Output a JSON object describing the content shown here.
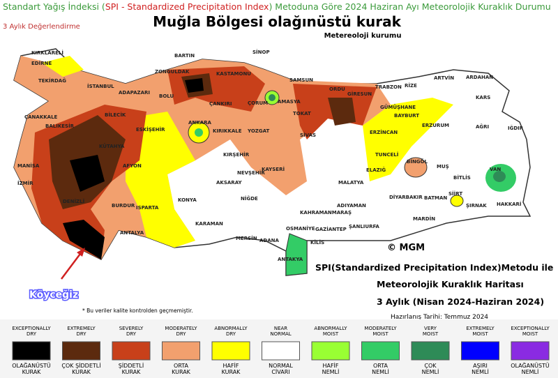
{
  "header": {
    "parts": [
      "Standart Yağış İndeksi (",
      "SPI - Standardized Precipitation Index",
      ") Metoduna Göre 2024 Haziran Ayı Meteorolojik Kuraklık Durumu"
    ],
    "subtitle": "3 Aylık Değerlendirme",
    "title": "Muğla Bölgesi olağınüstü kurak",
    "source": "Metereoloji kurumu"
  },
  "map": {
    "cities": [
      "KIRKLARELİ",
      "EDİRNE",
      "TEKİRDAĞ",
      "İSTANBUL",
      "ÇANAKKALE",
      "BALIKESİR",
      "BİLECİK",
      "ADAPAZARI",
      "BOLU",
      "ZONGULDAK",
      "BARTIN",
      "KASTAMONU",
      "SİNOP",
      "SAMSUN",
      "ORDU",
      "GİRESUN",
      "TRABZON",
      "RİZE",
      "ARTVİN",
      "ARDAHAN",
      "KARS",
      "AĞRI",
      "IĞDIR",
      "ERZURUM",
      "BAYBURT",
      "GÜMÜŞHANE",
      "ERZİNCAN",
      "TUNCELİ",
      "BİNGÖL",
      "MUŞ",
      "BİTLİS",
      "VAN",
      "SİİRT",
      "ŞIRNAK",
      "HAKKARİ",
      "BATMAN",
      "DİYARBAKIR",
      "MARDİN",
      "ŞANLIURFA",
      "ADIYAMAN",
      "MALATYA",
      "ELAZIĞ",
      "SİVAS",
      "TOKAT",
      "AMASYA",
      "ÇORUM",
      "ÇANKIRI",
      "KIRIKKALE",
      "ANKARA",
      "YOZGAT",
      "KIRŞEHİR",
      "NEVŞEHİR",
      "KAYSERİ",
      "AKSARAY",
      "NİĞDE",
      "KONYA",
      "KARAMAN",
      "MERSİN",
      "ADANA",
      "OSMANİYE",
      "GAZİANTEP",
      "KİLİS",
      "ANTAKYA",
      "KAHRAMANMARAŞ",
      "ESKİŞEHİR",
      "KÜTAHYA",
      "AFYON",
      "MANİSA",
      "İZMİR",
      "DENİZLİ",
      "BURDUR",
      "ISPARTA",
      "ANTALYA"
    ],
    "copyright": "© MGM",
    "callout": "Köyceğiz",
    "note": "* Bu veriler kalite kontrolden geçmemiştir.",
    "info": [
      "SPI(Standardized Precipitation Index)Metodu ile",
      "Meteorolojik Kuraklık Haritası",
      "3 Aylık (Nisan 2024-Haziran 2024)",
      "Hazırlanış Tarihi: Temmuz 2024"
    ]
  },
  "legend": [
    {
      "top": [
        "EXCEPTIONALLY",
        "DRY"
      ],
      "bottom": [
        "OLAĞANÜSTÜ",
        "KURAK"
      ],
      "color": "#000000"
    },
    {
      "top": [
        "EXTREMELY",
        "DRY"
      ],
      "bottom": [
        "ÇOK ŞİDDETLİ",
        "KURAK"
      ],
      "color": "#5c2a0e"
    },
    {
      "top": [
        "SEVERELY",
        "DRY"
      ],
      "bottom": [
        "ŞİDDETLİ",
        "KURAK"
      ],
      "color": "#c8401a"
    },
    {
      "top": [
        "MODERATELY",
        "DRY"
      ],
      "bottom": [
        "ORTA",
        "KURAK"
      ],
      "color": "#f2a06e"
    },
    {
      "top": [
        "ABNORMALLY",
        "DRY"
      ],
      "bottom": [
        "HAFİF",
        "KURAK"
      ],
      "color": "#ffff00"
    },
    {
      "top": [
        "NEAR",
        "NORMAL"
      ],
      "bottom": [
        "NORMAL",
        "CİVARI"
      ],
      "color": "#ffffff"
    },
    {
      "top": [
        "ABNORMALLY",
        "MOIST"
      ],
      "bottom": [
        "HAFİF",
        "NEMLİ"
      ],
      "color": "#99ff33"
    },
    {
      "top": [
        "MODERATELY",
        "MOIST"
      ],
      "bottom": [
        "ORTA",
        "NEMLİ"
      ],
      "color": "#33cc66"
    },
    {
      "top": [
        "VERY",
        "MOIST"
      ],
      "bottom": [
        "ÇOK",
        "NEMLİ"
      ],
      "color": "#2e8b57"
    },
    {
      "top": [
        "EXTREMELY",
        "MOIST"
      ],
      "bottom": [
        "AŞIRI",
        "NEMLİ"
      ],
      "color": "#0000ff"
    },
    {
      "top": [
        "EXCEPTIONALLY",
        "MOIST"
      ],
      "bottom": [
        "OLAĞANÜSTÜ",
        "NEMLİ"
      ],
      "color": "#8a2be2"
    }
  ]
}
